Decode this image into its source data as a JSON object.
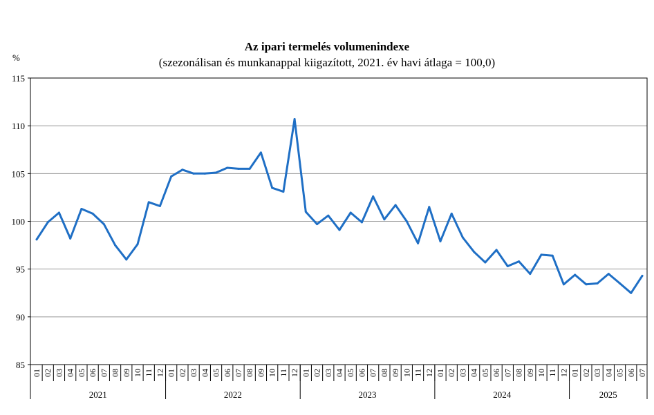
{
  "chart_data": {
    "type": "line",
    "title": "Az ipari termelés volumenindexe",
    "subtitle": "(szezonálisan és munkanappal kiigazított, 2021. év havi átlaga = 100,0)",
    "ylabel": "%",
    "ylim": [
      85,
      115
    ],
    "yticks": [
      "85",
      "90",
      "95",
      "100",
      "105",
      "110",
      "115"
    ],
    "grid": true,
    "line_color": "#1F6FC5",
    "month_labels": [
      "01",
      "02",
      "03",
      "04",
      "05",
      "06",
      "07",
      "08",
      "09",
      "10",
      "11",
      "12"
    ],
    "years": [
      "2021",
      "2022",
      "2023",
      "2024",
      "2025"
    ],
    "x": [
      "2021-01",
      "2021-02",
      "2021-03",
      "2021-04",
      "2021-05",
      "2021-06",
      "2021-07",
      "2021-08",
      "2021-09",
      "2021-10",
      "2021-11",
      "2021-12",
      "2022-01",
      "2022-02",
      "2022-03",
      "2022-04",
      "2022-05",
      "2022-06",
      "2022-07",
      "2022-08",
      "2022-09",
      "2022-10",
      "2022-11",
      "2022-12",
      "2023-01",
      "2023-02",
      "2023-03",
      "2023-04",
      "2023-05",
      "2023-06",
      "2023-07",
      "2023-08",
      "2023-09",
      "2023-10",
      "2023-11",
      "2023-12",
      "2024-01",
      "2024-02",
      "2024-03",
      "2024-04",
      "2024-05",
      "2024-06",
      "2024-07",
      "2024-08",
      "2024-09",
      "2024-10",
      "2024-11",
      "2024-12",
      "2025-01",
      "2025-02",
      "2025-03",
      "2025-04",
      "2025-05",
      "2025-06",
      "2025-07"
    ],
    "values": [
      98.1,
      99.9,
      100.9,
      98.2,
      101.3,
      100.8,
      99.7,
      97.5,
      96.0,
      97.6,
      102.0,
      101.6,
      104.7,
      105.4,
      105.0,
      105.0,
      105.1,
      105.6,
      105.5,
      105.5,
      107.2,
      103.5,
      103.1,
      110.7,
      101.0,
      99.7,
      100.6,
      99.1,
      100.9,
      99.9,
      102.6,
      100.2,
      101.7,
      100.0,
      97.7,
      101.5,
      97.9,
      100.8,
      98.3,
      96.8,
      95.7,
      97.0,
      95.3,
      95.8,
      94.5,
      96.5,
      96.4,
      93.4,
      94.4,
      93.4,
      93.5,
      94.5,
      93.5,
      92.5,
      94.3
    ]
  }
}
